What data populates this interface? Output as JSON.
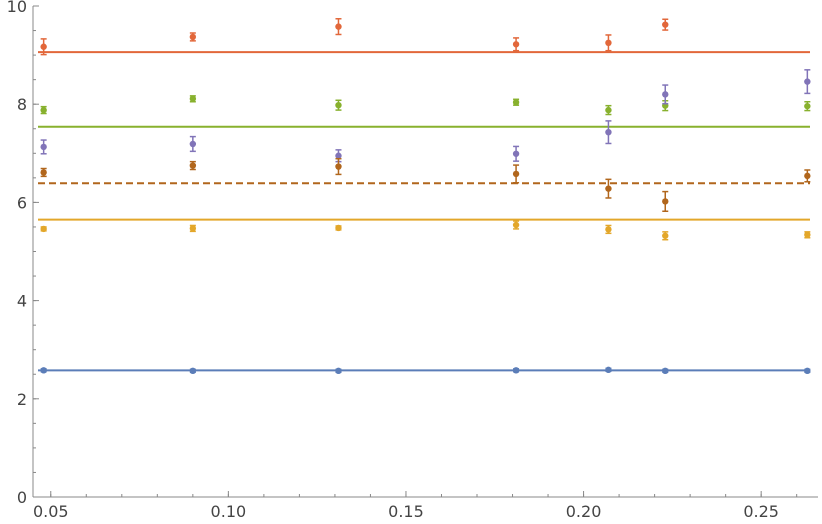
{
  "chart_data": {
    "type": "scatter",
    "title": "",
    "xlabel": "",
    "ylabel": "",
    "xlim": [
      0.045,
      0.266
    ],
    "ylim": [
      0,
      10
    ],
    "grid": false,
    "x_ticks": [
      {
        "value": 0.05,
        "label": "0.05"
      },
      {
        "value": 0.1,
        "label": "0.10"
      },
      {
        "value": 0.15,
        "label": "0.15"
      },
      {
        "value": 0.2,
        "label": "0.20"
      },
      {
        "value": 0.25,
        "label": "0.25"
      }
    ],
    "y_ticks": [
      {
        "value": 0,
        "label": "0"
      },
      {
        "value": 2,
        "label": "2"
      },
      {
        "value": 4,
        "label": "4"
      },
      {
        "value": 6,
        "label": "6"
      },
      {
        "value": 8,
        "label": "8"
      },
      {
        "value": 10,
        "label": "10"
      }
    ],
    "x_minor_step": 0.01,
    "y_minor_step": 0.5,
    "series": [
      {
        "color": "#5b7db8",
        "points": [
          {
            "x": 0.048,
            "y": 2.58,
            "err": 0.03
          },
          {
            "x": 0.09,
            "y": 2.57,
            "err": 0.03
          },
          {
            "x": 0.131,
            "y": 2.57,
            "err": 0.03
          },
          {
            "x": 0.181,
            "y": 2.58,
            "err": 0.03
          },
          {
            "x": 0.207,
            "y": 2.59,
            "err": 0.03
          },
          {
            "x": 0.223,
            "y": 2.57,
            "err": 0.03
          },
          {
            "x": 0.263,
            "y": 2.57,
            "err": 0.03
          }
        ],
        "fit": {
          "y": 2.58,
          "dashed": false
        }
      },
      {
        "color": "#e2673a",
        "points": [
          {
            "x": 0.048,
            "y": 9.17,
            "err": 0.16
          },
          {
            "x": 0.09,
            "y": 9.37,
            "err": 0.08
          },
          {
            "x": 0.131,
            "y": 9.58,
            "err": 0.16
          },
          {
            "x": 0.181,
            "y": 9.22,
            "err": 0.13
          },
          {
            "x": 0.207,
            "y": 9.25,
            "err": 0.16
          },
          {
            "x": 0.223,
            "y": 9.62,
            "err": 0.11
          }
        ],
        "fit": {
          "y": 9.06,
          "dashed": false
        }
      },
      {
        "color": "#88b12e",
        "points": [
          {
            "x": 0.048,
            "y": 7.88,
            "err": 0.07
          },
          {
            "x": 0.09,
            "y": 8.11,
            "err": 0.06
          },
          {
            "x": 0.131,
            "y": 7.98,
            "err": 0.1
          },
          {
            "x": 0.181,
            "y": 8.04,
            "err": 0.06
          },
          {
            "x": 0.207,
            "y": 7.88,
            "err": 0.09
          },
          {
            "x": 0.223,
            "y": 7.97,
            "err": 0.1
          },
          {
            "x": 0.263,
            "y": 7.96,
            "err": 0.09
          }
        ],
        "fit": {
          "y": 7.54,
          "dashed": false
        }
      },
      {
        "color": "#8174b8",
        "points": [
          {
            "x": 0.048,
            "y": 7.13,
            "err": 0.14
          },
          {
            "x": 0.09,
            "y": 7.19,
            "err": 0.15
          },
          {
            "x": 0.131,
            "y": 6.95,
            "err": 0.12
          },
          {
            "x": 0.181,
            "y": 6.99,
            "err": 0.15
          },
          {
            "x": 0.207,
            "y": 7.43,
            "err": 0.23
          },
          {
            "x": 0.223,
            "y": 8.2,
            "err": 0.19
          },
          {
            "x": 0.263,
            "y": 8.46,
            "err": 0.24
          }
        ],
        "fit": null
      },
      {
        "color": "#b1661c",
        "points": [
          {
            "x": 0.048,
            "y": 6.61,
            "err": 0.08
          },
          {
            "x": 0.09,
            "y": 6.75,
            "err": 0.08
          },
          {
            "x": 0.131,
            "y": 6.73,
            "err": 0.16
          },
          {
            "x": 0.181,
            "y": 6.58,
            "err": 0.18
          },
          {
            "x": 0.207,
            "y": 6.28,
            "err": 0.19
          },
          {
            "x": 0.223,
            "y": 6.02,
            "err": 0.2
          },
          {
            "x": 0.263,
            "y": 6.54,
            "err": 0.12
          }
        ],
        "fit": {
          "y": 6.39,
          "dashed": true
        }
      },
      {
        "color": "#e3a72a",
        "points": [
          {
            "x": 0.048,
            "y": 5.46,
            "err": 0.04
          },
          {
            "x": 0.09,
            "y": 5.47,
            "err": 0.06
          },
          {
            "x": 0.131,
            "y": 5.48,
            "err": 0.04
          },
          {
            "x": 0.181,
            "y": 5.54,
            "err": 0.08
          },
          {
            "x": 0.207,
            "y": 5.45,
            "err": 0.08
          },
          {
            "x": 0.223,
            "y": 5.32,
            "err": 0.08
          },
          {
            "x": 0.263,
            "y": 5.34,
            "err": 0.06
          }
        ],
        "fit": {
          "y": 5.65,
          "dashed": false
        }
      }
    ]
  }
}
